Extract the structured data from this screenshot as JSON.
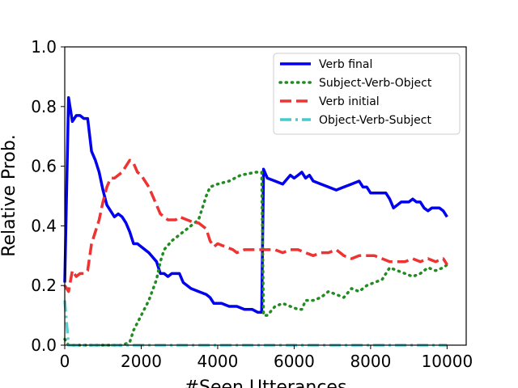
{
  "chart_data": {
    "type": "line",
    "title": "",
    "xlabel": "#Seen Utterances",
    "ylabel": "Relative Prob.",
    "xlim": [
      0,
      10500
    ],
    "ylim": [
      0,
      1.0
    ],
    "xticks": [
      0,
      2000,
      4000,
      6000,
      8000,
      10000
    ],
    "xtick_labels": [
      "0",
      "2000",
      "4000",
      "6000",
      "8000",
      "10000"
    ],
    "yticks": [
      0.0,
      0.2,
      0.4,
      0.6,
      0.8,
      1.0
    ],
    "ytick_labels": [
      "0.0",
      "0.2",
      "0.4",
      "0.6",
      "0.8",
      "1.0"
    ],
    "grid": false,
    "legend_position": "top-right",
    "series": [
      {
        "name": "Verb final",
        "color": "#0000ee",
        "style": "solid",
        "points": [
          [
            0,
            0.21
          ],
          [
            100,
            0.83
          ],
          [
            200,
            0.75
          ],
          [
            300,
            0.77
          ],
          [
            400,
            0.77
          ],
          [
            500,
            0.76
          ],
          [
            600,
            0.76
          ],
          [
            700,
            0.65
          ],
          [
            800,
            0.62
          ],
          [
            900,
            0.58
          ],
          [
            1000,
            0.52
          ],
          [
            1100,
            0.47
          ],
          [
            1200,
            0.45
          ],
          [
            1300,
            0.43
          ],
          [
            1400,
            0.44
          ],
          [
            1500,
            0.43
          ],
          [
            1600,
            0.41
          ],
          [
            1700,
            0.38
          ],
          [
            1800,
            0.34
          ],
          [
            1900,
            0.34
          ],
          [
            2000,
            0.33
          ],
          [
            2200,
            0.31
          ],
          [
            2400,
            0.28
          ],
          [
            2500,
            0.24
          ],
          [
            2600,
            0.24
          ],
          [
            2700,
            0.23
          ],
          [
            2800,
            0.24
          ],
          [
            3000,
            0.24
          ],
          [
            3100,
            0.21
          ],
          [
            3300,
            0.19
          ],
          [
            3500,
            0.18
          ],
          [
            3700,
            0.17
          ],
          [
            3800,
            0.16
          ],
          [
            3900,
            0.14
          ],
          [
            4000,
            0.14
          ],
          [
            4100,
            0.14
          ],
          [
            4300,
            0.13
          ],
          [
            4500,
            0.13
          ],
          [
            4700,
            0.12
          ],
          [
            4900,
            0.12
          ],
          [
            5050,
            0.11
          ],
          [
            5150,
            0.11
          ],
          [
            5200,
            0.59
          ],
          [
            5300,
            0.56
          ],
          [
            5500,
            0.55
          ],
          [
            5700,
            0.54
          ],
          [
            5900,
            0.57
          ],
          [
            6000,
            0.56
          ],
          [
            6100,
            0.57
          ],
          [
            6200,
            0.58
          ],
          [
            6300,
            0.56
          ],
          [
            6400,
            0.57
          ],
          [
            6500,
            0.55
          ],
          [
            6700,
            0.54
          ],
          [
            6900,
            0.53
          ],
          [
            7100,
            0.52
          ],
          [
            7300,
            0.53
          ],
          [
            7500,
            0.54
          ],
          [
            7700,
            0.55
          ],
          [
            7800,
            0.53
          ],
          [
            7900,
            0.53
          ],
          [
            8000,
            0.51
          ],
          [
            8200,
            0.51
          ],
          [
            8400,
            0.51
          ],
          [
            8500,
            0.49
          ],
          [
            8600,
            0.46
          ],
          [
            8800,
            0.48
          ],
          [
            9000,
            0.48
          ],
          [
            9100,
            0.49
          ],
          [
            9200,
            0.48
          ],
          [
            9300,
            0.48
          ],
          [
            9400,
            0.46
          ],
          [
            9500,
            0.45
          ],
          [
            9600,
            0.46
          ],
          [
            9800,
            0.46
          ],
          [
            9900,
            0.45
          ],
          [
            10000,
            0.43
          ]
        ]
      },
      {
        "name": "Subject-Verb-Object",
        "color": "#228b22",
        "style": "dotted",
        "points": [
          [
            0,
            0.02
          ],
          [
            100,
            0.0
          ],
          [
            500,
            0.0
          ],
          [
            1000,
            0.0
          ],
          [
            1500,
            0.0
          ],
          [
            1700,
            0.01
          ],
          [
            1800,
            0.05
          ],
          [
            2000,
            0.1
          ],
          [
            2200,
            0.15
          ],
          [
            2400,
            0.22
          ],
          [
            2500,
            0.28
          ],
          [
            2600,
            0.32
          ],
          [
            2800,
            0.35
          ],
          [
            3000,
            0.37
          ],
          [
            3200,
            0.39
          ],
          [
            3500,
            0.42
          ],
          [
            3700,
            0.5
          ],
          [
            3800,
            0.53
          ],
          [
            4000,
            0.54
          ],
          [
            4300,
            0.55
          ],
          [
            4600,
            0.57
          ],
          [
            5000,
            0.58
          ],
          [
            5150,
            0.58
          ],
          [
            5200,
            0.1
          ],
          [
            5300,
            0.1
          ],
          [
            5500,
            0.13
          ],
          [
            5700,
            0.14
          ],
          [
            5900,
            0.13
          ],
          [
            6100,
            0.12
          ],
          [
            6200,
            0.12
          ],
          [
            6300,
            0.15
          ],
          [
            6500,
            0.15
          ],
          [
            6700,
            0.16
          ],
          [
            6900,
            0.18
          ],
          [
            7100,
            0.17
          ],
          [
            7300,
            0.16
          ],
          [
            7500,
            0.19
          ],
          [
            7700,
            0.18
          ],
          [
            7900,
            0.2
          ],
          [
            8100,
            0.21
          ],
          [
            8300,
            0.22
          ],
          [
            8500,
            0.26
          ],
          [
            8700,
            0.25
          ],
          [
            8900,
            0.24
          ],
          [
            9100,
            0.23
          ],
          [
            9300,
            0.24
          ],
          [
            9500,
            0.26
          ],
          [
            9700,
            0.25
          ],
          [
            9900,
            0.26
          ],
          [
            10000,
            0.27
          ]
        ]
      },
      {
        "name": "Verb initial",
        "color": "#ee3333",
        "style": "dashed",
        "points": [
          [
            0,
            0.2
          ],
          [
            100,
            0.18
          ],
          [
            200,
            0.25
          ],
          [
            300,
            0.23
          ],
          [
            400,
            0.24
          ],
          [
            500,
            0.24
          ],
          [
            600,
            0.25
          ],
          [
            700,
            0.34
          ],
          [
            800,
            0.38
          ],
          [
            900,
            0.42
          ],
          [
            1000,
            0.48
          ],
          [
            1100,
            0.53
          ],
          [
            1200,
            0.56
          ],
          [
            1300,
            0.56
          ],
          [
            1400,
            0.57
          ],
          [
            1500,
            0.58
          ],
          [
            1600,
            0.6
          ],
          [
            1700,
            0.62
          ],
          [
            1800,
            0.61
          ],
          [
            1900,
            0.58
          ],
          [
            2000,
            0.57
          ],
          [
            2200,
            0.53
          ],
          [
            2400,
            0.47
          ],
          [
            2500,
            0.44
          ],
          [
            2700,
            0.42
          ],
          [
            2900,
            0.42
          ],
          [
            3000,
            0.43
          ],
          [
            3200,
            0.42
          ],
          [
            3400,
            0.41
          ],
          [
            3500,
            0.41
          ],
          [
            3700,
            0.39
          ],
          [
            3800,
            0.35
          ],
          [
            3900,
            0.33
          ],
          [
            4000,
            0.34
          ],
          [
            4200,
            0.33
          ],
          [
            4400,
            0.32
          ],
          [
            4500,
            0.31
          ],
          [
            4700,
            0.32
          ],
          [
            4900,
            0.32
          ],
          [
            5100,
            0.32
          ],
          [
            5300,
            0.32
          ],
          [
            5500,
            0.32
          ],
          [
            5700,
            0.31
          ],
          [
            5900,
            0.32
          ],
          [
            6100,
            0.32
          ],
          [
            6300,
            0.31
          ],
          [
            6500,
            0.3
          ],
          [
            6700,
            0.31
          ],
          [
            6900,
            0.31
          ],
          [
            7100,
            0.32
          ],
          [
            7300,
            0.3
          ],
          [
            7500,
            0.29
          ],
          [
            7700,
            0.3
          ],
          [
            7900,
            0.3
          ],
          [
            8100,
            0.3
          ],
          [
            8300,
            0.29
          ],
          [
            8500,
            0.28
          ],
          [
            8700,
            0.28
          ],
          [
            8900,
            0.28
          ],
          [
            9100,
            0.29
          ],
          [
            9300,
            0.28
          ],
          [
            9500,
            0.29
          ],
          [
            9700,
            0.28
          ],
          [
            9900,
            0.29
          ],
          [
            10000,
            0.27
          ]
        ]
      },
      {
        "name": "Object-Verb-Subject",
        "color": "#44cccc",
        "style": "dashdot",
        "points": [
          [
            0,
            0.15
          ],
          [
            100,
            0.0
          ],
          [
            500,
            0.0
          ],
          [
            1000,
            0.0
          ],
          [
            2000,
            0.0
          ],
          [
            3000,
            0.0
          ],
          [
            4000,
            0.0
          ],
          [
            5000,
            0.0
          ],
          [
            6000,
            0.0
          ],
          [
            7000,
            0.0
          ],
          [
            8000,
            0.0
          ],
          [
            9000,
            0.0
          ],
          [
            10000,
            0.0
          ]
        ]
      }
    ]
  }
}
